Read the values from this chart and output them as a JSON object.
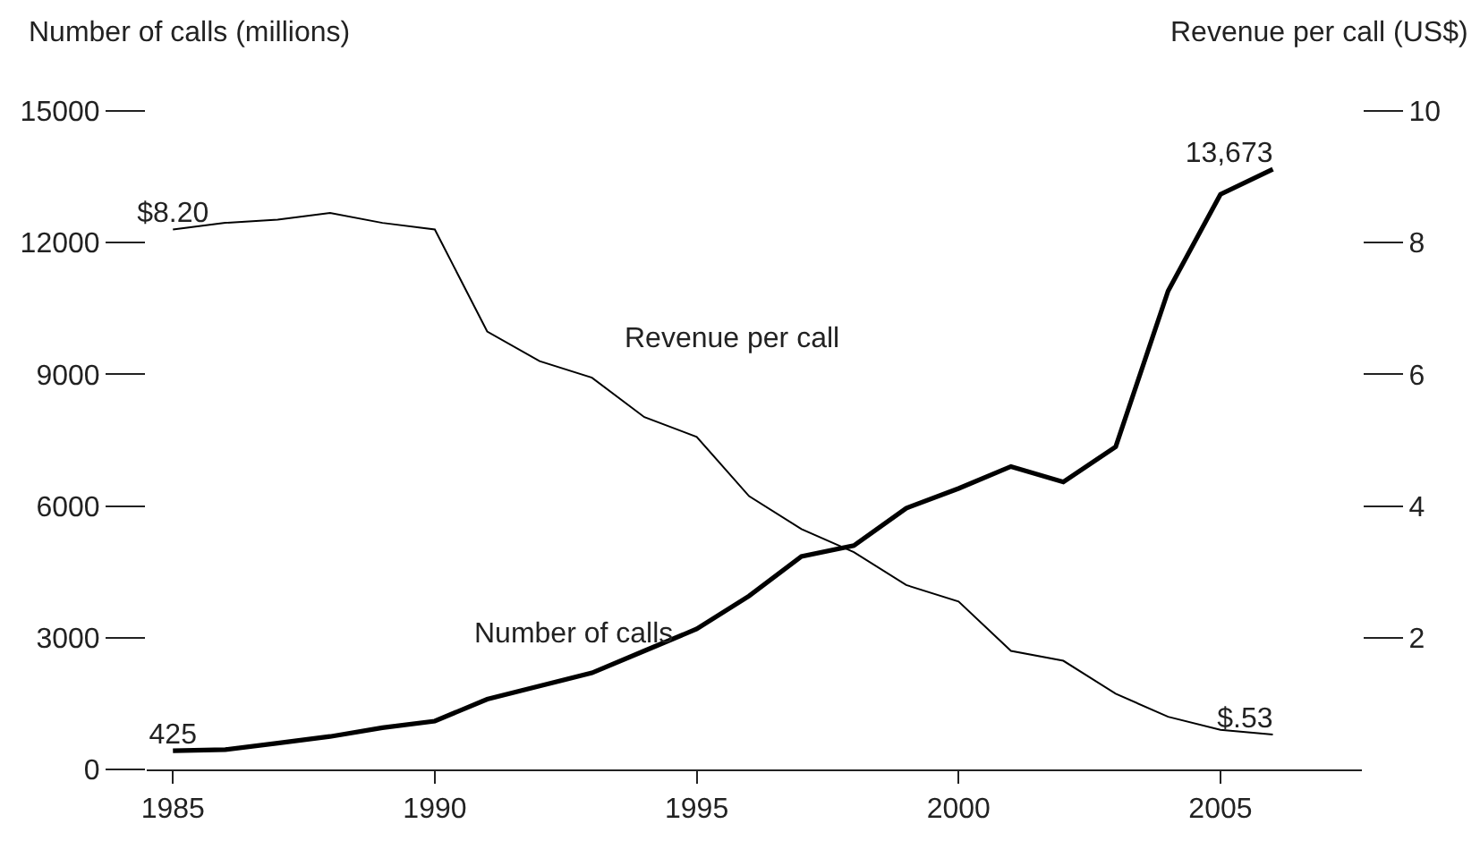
{
  "chart_data": {
    "type": "line",
    "ylabel": "Number of calls (millions)",
    "y2label": "Revenue per call (US$)",
    "x": [
      1985,
      1986,
      1987,
      1988,
      1989,
      1990,
      1991,
      1992,
      1993,
      1994,
      1995,
      1996,
      1997,
      1998,
      1999,
      2000,
      2001,
      2002,
      2003,
      2004,
      2005,
      2006
    ],
    "series": [
      {
        "name": "Number of calls",
        "color": "#000000",
        "values": [
          425,
          450,
          600,
          750,
          950,
          1100,
          1600,
          1900,
          2200,
          2700,
          3200,
          3950,
          4850,
          5100,
          5950,
          6400,
          6900,
          6550,
          7350,
          10900,
          13100,
          13673
        ],
        "value_labels": [
          "425",
          null,
          null,
          null,
          null,
          null,
          null,
          null,
          null,
          null,
          null,
          null,
          null,
          null,
          null,
          null,
          null,
          null,
          null,
          null,
          null,
          "13,673"
        ]
      },
      {
        "name": "Revenue per call",
        "color": "#000000",
        "axis": "y2",
        "values": [
          8.2,
          8.3,
          8.35,
          8.45,
          8.3,
          8.2,
          6.65,
          6.2,
          5.95,
          5.35,
          5.05,
          4.15,
          3.65,
          3.3,
          2.8,
          2.55,
          1.8,
          1.65,
          1.15,
          0.8,
          0.6,
          0.53
        ],
        "value_labels": [
          "$8.20",
          null,
          null,
          null,
          null,
          null,
          null,
          null,
          null,
          null,
          null,
          null,
          null,
          null,
          null,
          null,
          null,
          null,
          null,
          null,
          null,
          "$.53"
        ]
      }
    ],
    "xlim": [
      1984.5,
      2007.7
    ],
    "xticks": [
      1985,
      1990,
      1995,
      2000,
      2005
    ],
    "ylim": [
      0,
      15000
    ],
    "yticks": [
      0,
      3000,
      6000,
      9000,
      12000,
      15000
    ],
    "y2lim": [
      0,
      10
    ],
    "y2ticks": [
      2,
      4,
      6,
      8,
      10
    ],
    "grid": false,
    "legend": false,
    "marker": "none",
    "line_style": "solid"
  }
}
